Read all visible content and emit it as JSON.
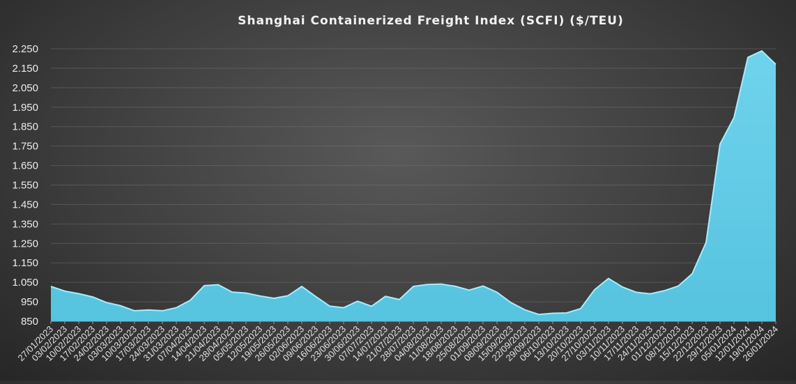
{
  "chart_data": {
    "type": "area",
    "title": "Shanghai  Containerized  Freight  Index  (SCFI) ($/TEU)",
    "xlabel": "",
    "ylabel": "",
    "ylim": [
      850,
      2250
    ],
    "yticks": [
      "850",
      "950",
      "1.050",
      "1.150",
      "1.250",
      "1.350",
      "1.450",
      "1.550",
      "1.650",
      "1.750",
      "1.850",
      "1.950",
      "2.050",
      "2.150",
      "2.250"
    ],
    "grid": true,
    "legend": "none",
    "color": "#56c3df",
    "categories": [
      "27/01/2023",
      "03/02/2023",
      "10/02/2023",
      "17/02/2023",
      "24/02/2023",
      "03/03/2023",
      "10/03/2023",
      "17/03/2023",
      "24/03/2023",
      "31/03/2023",
      "07/04/2023",
      "14/04/2023",
      "21/04/2023",
      "28/04/2023",
      "05/05/2023",
      "12/05/2023",
      "19/05/2023",
      "26/05/2023",
      "02/06/2023",
      "09/06/2023",
      "16/06/2023",
      "23/06/2023",
      "30/06/2023",
      "07/07/2023",
      "14/07/2023",
      "21/07/2023",
      "28/07/2023",
      "04/08/2023",
      "11/08/2023",
      "18/08/2023",
      "25/08/2023",
      "01/09/2023",
      "08/09/2023",
      "15/09/2023",
      "22/09/2023",
      "29/09/2023",
      "06/10/2023",
      "13/10/2023",
      "20/10/2023",
      "27/10/2023",
      "03/11/2023",
      "10/11/2023",
      "17/11/2023",
      "24/11/2023",
      "01/12/2023",
      "08/12/2023",
      "15/12/2023",
      "22/12/2023",
      "29/12/2023",
      "05/01/2024",
      "12/01/2024",
      "19/01/2024",
      "26/01/2024"
    ],
    "values": [
      1029,
      1005,
      992,
      975,
      946,
      930,
      904,
      908,
      904,
      920,
      958,
      1033,
      1038,
      1000,
      995,
      980,
      968,
      981,
      1029,
      977,
      928,
      920,
      953,
      927,
      978,
      962,
      1029,
      1039,
      1041,
      1030,
      1010,
      1031,
      999,
      946,
      909,
      885,
      891,
      893,
      915,
      1012,
      1070,
      1026,
      999,
      991,
      1007,
      1031,
      1094,
      1255,
      1760,
      1896,
      2206,
      2239,
      2170
    ]
  }
}
